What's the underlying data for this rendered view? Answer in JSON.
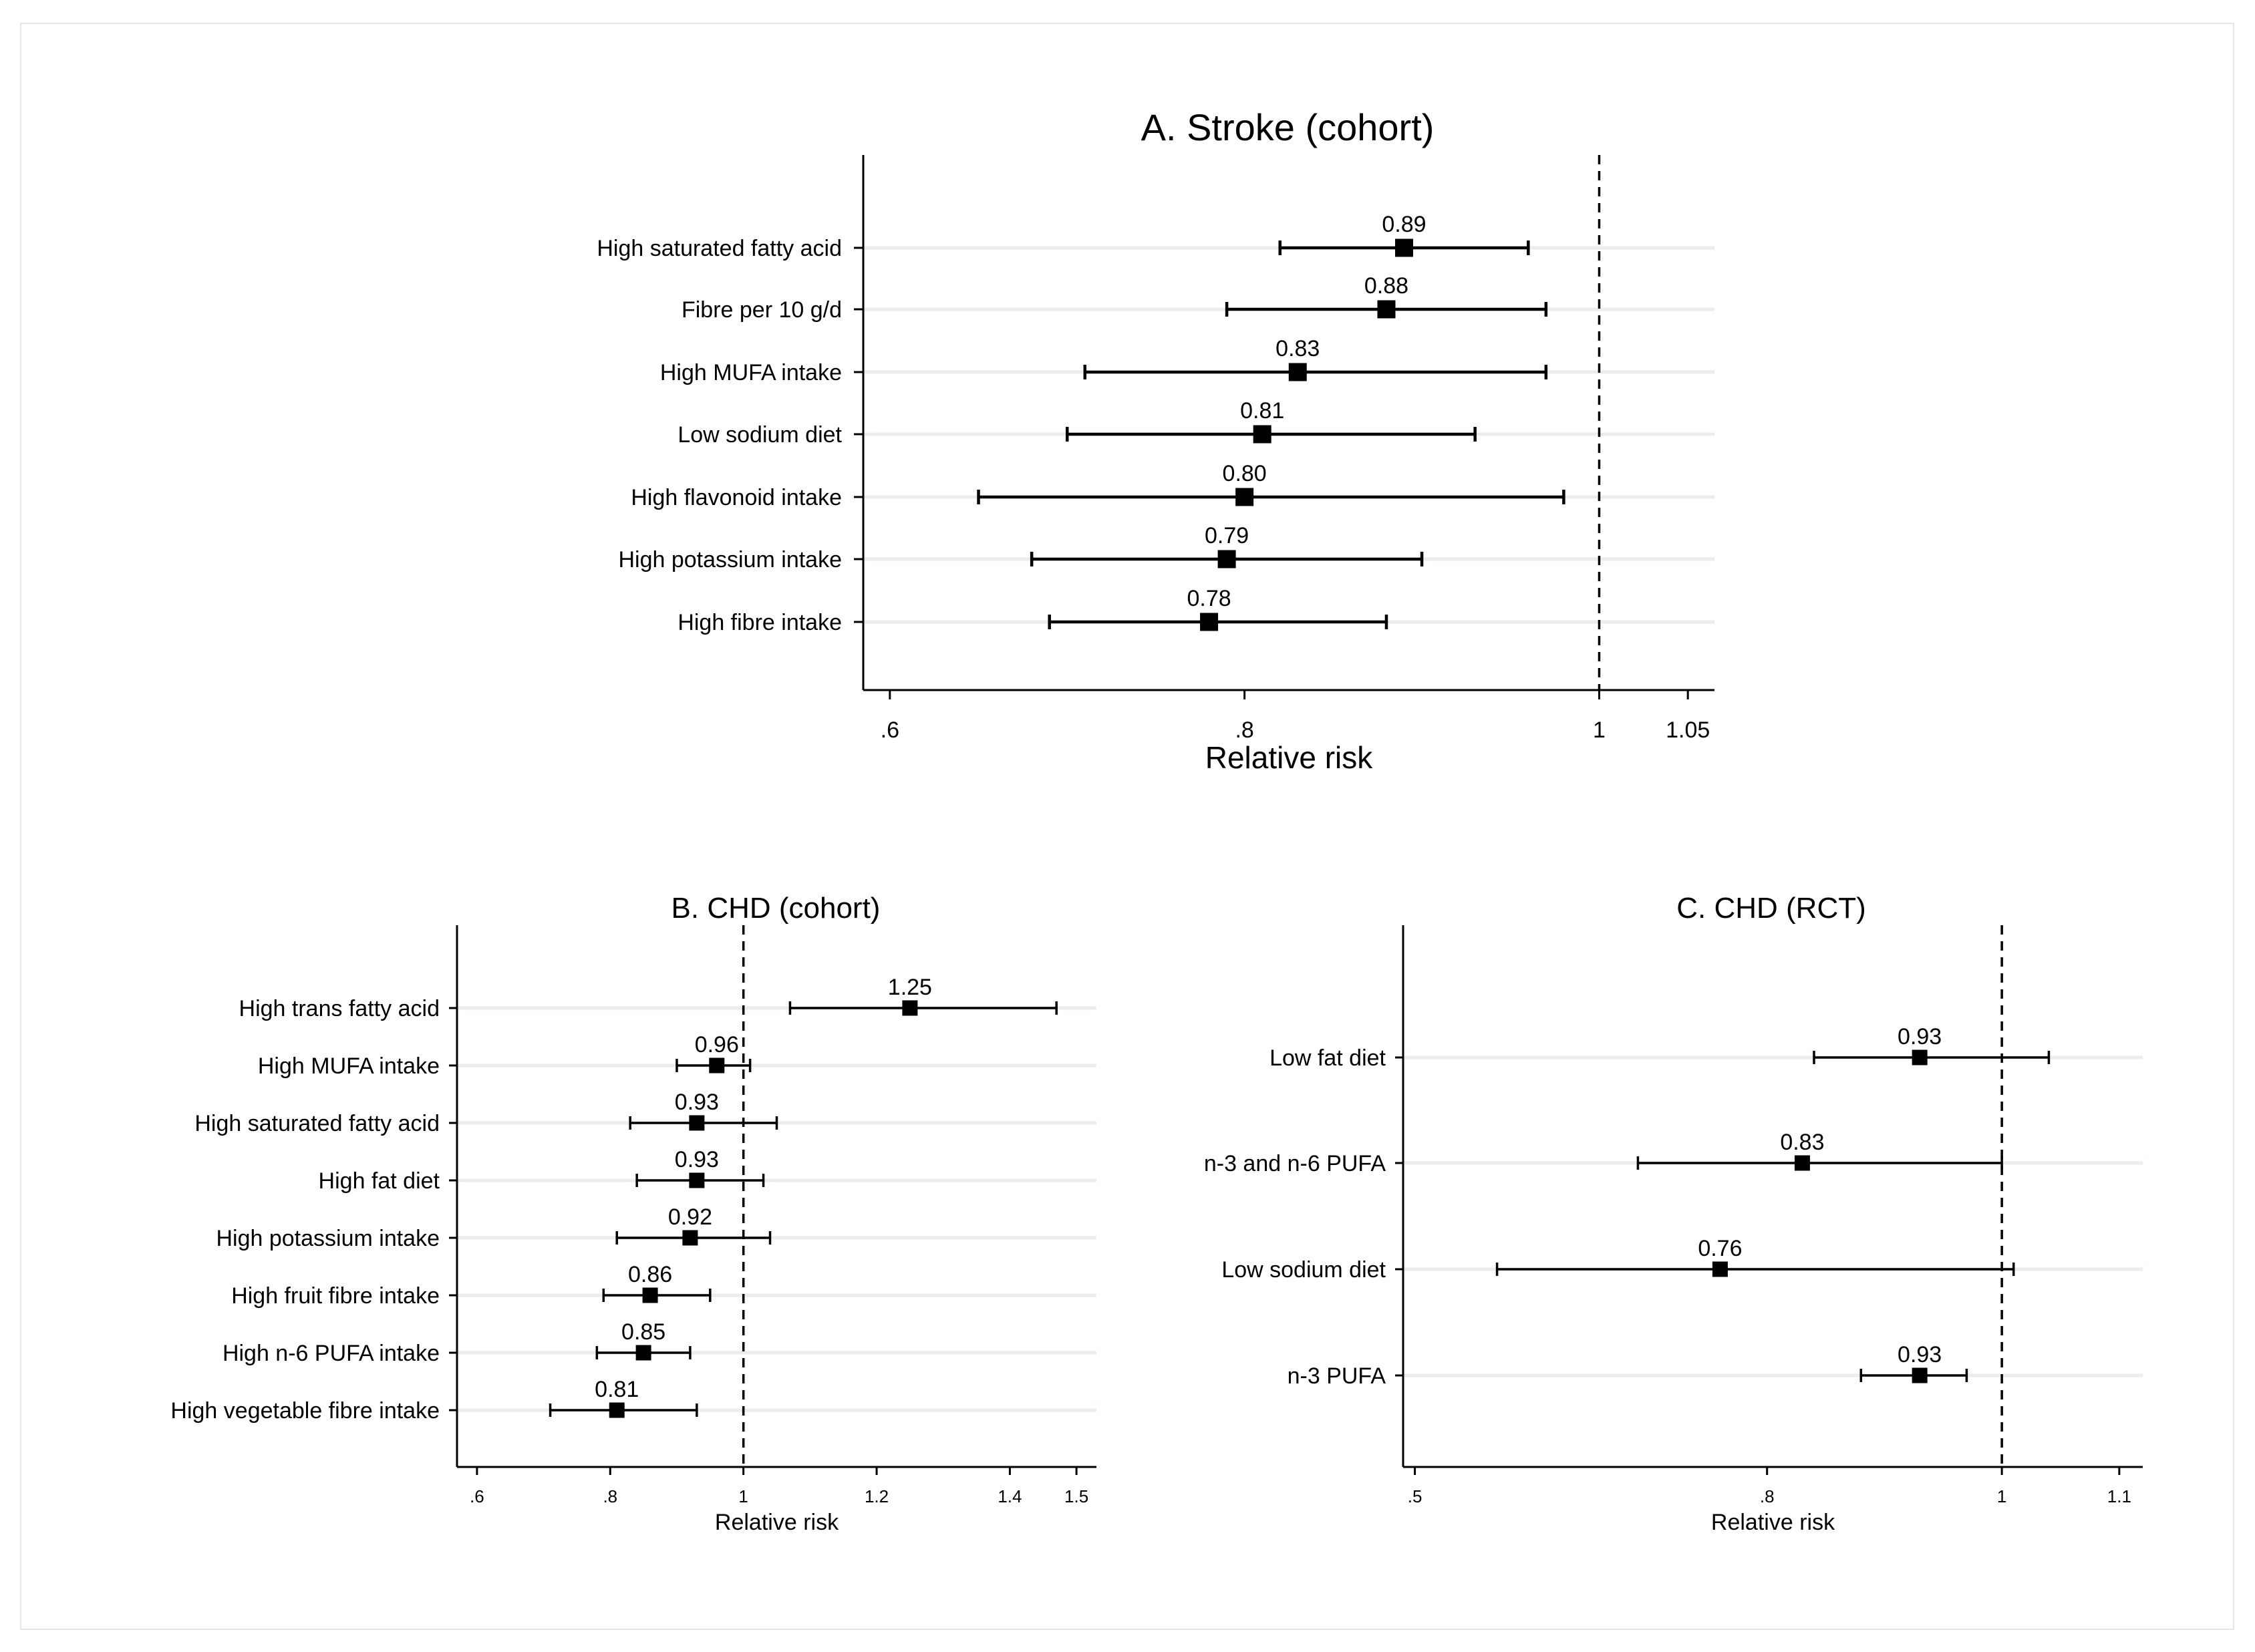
{
  "chart_data": [
    {
      "panel": "A",
      "type": "forest",
      "title": "A. Stroke (cohort)",
      "xlabel": "Relative risk",
      "xlim": [
        0.585,
        1.065
      ],
      "reference_line": 1,
      "xticks": [
        0.6,
        0.8,
        1,
        1.05
      ],
      "xtick_labels": [
        ".6",
        ".8",
        "1",
        "1.05"
      ],
      "rows": [
        {
          "label": "High saturated fatty acid",
          "estimate": 0.89,
          "lower": 0.82,
          "upper": 0.96,
          "value_label": "0.89"
        },
        {
          "label": "Fibre per 10 g/d",
          "estimate": 0.88,
          "lower": 0.79,
          "upper": 0.97,
          "value_label": "0.88"
        },
        {
          "label": "High MUFA intake",
          "estimate": 0.83,
          "lower": 0.71,
          "upper": 0.97,
          "value_label": "0.83"
        },
        {
          "label": "Low sodium diet",
          "estimate": 0.81,
          "lower": 0.7,
          "upper": 0.93,
          "value_label": "0.81"
        },
        {
          "label": "High flavonoid intake",
          "estimate": 0.8,
          "lower": 0.65,
          "upper": 0.98,
          "value_label": "0.80"
        },
        {
          "label": "High potassium intake",
          "estimate": 0.79,
          "lower": 0.68,
          "upper": 0.9,
          "value_label": "0.79"
        },
        {
          "label": "High fibre intake",
          "estimate": 0.78,
          "lower": 0.69,
          "upper": 0.88,
          "value_label": "0.78"
        }
      ]
    },
    {
      "panel": "B",
      "type": "forest",
      "title": "B. CHD (cohort)",
      "xlabel": "Relative risk",
      "xlim": [
        0.57,
        1.53
      ],
      "reference_line": 1,
      "xticks": [
        0.6,
        0.8,
        1,
        1.2,
        1.4,
        1.5
      ],
      "xtick_labels": [
        ".6",
        ".8",
        "1",
        "1.2",
        "1.4",
        "1.5"
      ],
      "rows": [
        {
          "label": "High trans fatty acid",
          "estimate": 1.25,
          "lower": 1.07,
          "upper": 1.47,
          "value_label": "1.25"
        },
        {
          "label": "High MUFA intake",
          "estimate": 0.96,
          "lower": 0.9,
          "upper": 1.01,
          "value_label": "0.96"
        },
        {
          "label": "High saturated fatty acid",
          "estimate": 0.93,
          "lower": 0.83,
          "upper": 1.05,
          "value_label": "0.93"
        },
        {
          "label": "High fat diet",
          "estimate": 0.93,
          "lower": 0.84,
          "upper": 1.03,
          "value_label": "0.93"
        },
        {
          "label": "High potassium intake",
          "estimate": 0.92,
          "lower": 0.81,
          "upper": 1.04,
          "value_label": "0.92"
        },
        {
          "label": "High fruit fibre intake",
          "estimate": 0.86,
          "lower": 0.79,
          "upper": 0.95,
          "value_label": "0.86"
        },
        {
          "label": "High n-6 PUFA intake",
          "estimate": 0.85,
          "lower": 0.78,
          "upper": 0.92,
          "value_label": "0.85"
        },
        {
          "label": "High vegetable fibre intake",
          "estimate": 0.81,
          "lower": 0.71,
          "upper": 0.93,
          "value_label": "0.81"
        }
      ]
    },
    {
      "panel": "C",
      "type": "forest",
      "title": "C. CHD (RCT)",
      "xlabel": "Relative risk",
      "xlim": [
        0.49,
        1.12
      ],
      "reference_line": 1,
      "xticks": [
        0.5,
        0.8,
        1,
        1.1
      ],
      "xtick_labels": [
        ".5",
        ".8",
        "1",
        "1.1"
      ],
      "rows": [
        {
          "label": "Low fat diet",
          "estimate": 0.93,
          "lower": 0.84,
          "upper": 1.04,
          "value_label": "0.93"
        },
        {
          "label": "n-3 and n-6 PUFA",
          "estimate": 0.83,
          "lower": 0.69,
          "upper": 1.0,
          "value_label": "0.83"
        },
        {
          "label": "Low sodium diet",
          "estimate": 0.76,
          "lower": 0.57,
          "upper": 1.01,
          "value_label": "0.76"
        },
        {
          "label": "n-3 PUFA",
          "estimate": 0.93,
          "lower": 0.88,
          "upper": 0.97,
          "value_label": "0.93"
        }
      ]
    }
  ],
  "colors": {
    "ink": "#000000",
    "gridline": "#e8eef0",
    "frame": "#e6e6e6",
    "background": "#ffffff"
  }
}
